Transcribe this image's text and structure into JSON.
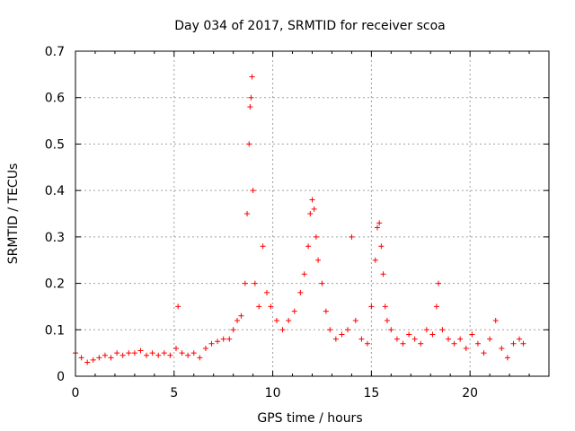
{
  "chart_data": {
    "type": "scatter",
    "title": "Day 034 of 2017, SRMTID for receiver scoa",
    "xlabel": "GPS time / hours",
    "ylabel": "SRMTID / TECUs",
    "xlim": [
      0,
      24
    ],
    "ylim": [
      0,
      0.7
    ],
    "x_ticks": [
      0,
      5,
      10,
      15,
      20
    ],
    "x_tick_labels": [
      "0",
      "5",
      "10",
      "15",
      "20"
    ],
    "y_ticks": [
      0,
      0.1,
      0.2,
      0.3,
      0.4,
      0.5,
      0.6,
      0.7
    ],
    "y_tick_labels": [
      "0",
      "0.1",
      "0.2",
      "0.3",
      "0.4",
      "0.5",
      "0.6",
      "0.7"
    ],
    "grid": true,
    "marker": "+",
    "series": [
      {
        "name": "SRMTID",
        "color": "#ff0000",
        "x": [
          0.0,
          0.3,
          0.6,
          0.9,
          1.2,
          1.5,
          1.8,
          2.1,
          2.4,
          2.7,
          3.0,
          3.3,
          3.6,
          3.9,
          4.2,
          4.5,
          4.8,
          5.1,
          5.2,
          5.4,
          5.7,
          6.0,
          6.3,
          6.6,
          6.9,
          7.2,
          7.5,
          7.8,
          8.0,
          8.2,
          8.4,
          8.6,
          8.7,
          8.8,
          8.85,
          8.9,
          8.95,
          9.0,
          9.1,
          9.3,
          9.5,
          9.7,
          9.9,
          10.2,
          10.5,
          10.8,
          11.1,
          11.4,
          11.6,
          11.8,
          11.9,
          12.0,
          12.1,
          12.2,
          12.3,
          12.5,
          12.7,
          12.9,
          13.2,
          13.5,
          13.8,
          14.0,
          14.2,
          14.5,
          14.8,
          15.0,
          15.2,
          15.3,
          15.4,
          15.5,
          15.6,
          15.7,
          15.8,
          16.0,
          16.3,
          16.6,
          16.9,
          17.2,
          17.5,
          17.8,
          18.1,
          18.3,
          18.4,
          18.6,
          18.9,
          19.2,
          19.5,
          19.8,
          20.1,
          20.4,
          20.7,
          21.0,
          21.3,
          21.6,
          21.9,
          22.2,
          22.5,
          22.7
        ],
        "y": [
          0.05,
          0.04,
          0.03,
          0.035,
          0.04,
          0.045,
          0.04,
          0.05,
          0.045,
          0.05,
          0.05,
          0.055,
          0.045,
          0.05,
          0.045,
          0.05,
          0.045,
          0.06,
          0.15,
          0.05,
          0.045,
          0.05,
          0.04,
          0.06,
          0.07,
          0.075,
          0.08,
          0.08,
          0.1,
          0.12,
          0.13,
          0.2,
          0.35,
          0.5,
          0.58,
          0.6,
          0.645,
          0.4,
          0.2,
          0.15,
          0.28,
          0.18,
          0.15,
          0.12,
          0.1,
          0.12,
          0.14,
          0.18,
          0.22,
          0.28,
          0.35,
          0.38,
          0.36,
          0.3,
          0.25,
          0.2,
          0.14,
          0.1,
          0.08,
          0.09,
          0.1,
          0.3,
          0.12,
          0.08,
          0.07,
          0.15,
          0.25,
          0.32,
          0.33,
          0.28,
          0.22,
          0.15,
          0.12,
          0.1,
          0.08,
          0.07,
          0.09,
          0.08,
          0.07,
          0.1,
          0.09,
          0.15,
          0.2,
          0.1,
          0.08,
          0.07,
          0.08,
          0.06,
          0.09,
          0.07,
          0.05,
          0.08,
          0.12,
          0.06,
          0.04,
          0.07,
          0.08,
          0.07
        ]
      }
    ]
  }
}
